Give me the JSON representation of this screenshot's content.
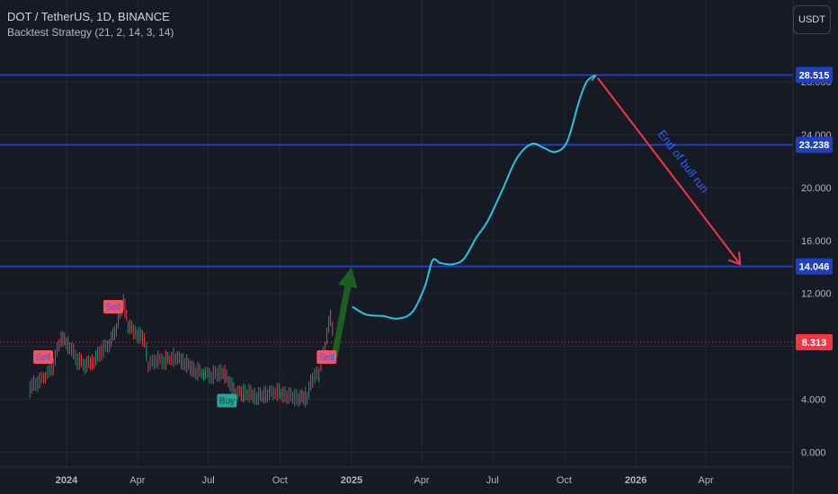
{
  "header": {
    "symbol": "DOT / TetherUS, 1D, BINANCE",
    "strategy": "Backtest Strategy (21, 2, 14, 3, 14)"
  },
  "currency_button": "USDT",
  "chart_data": {
    "type": "line",
    "ylim": [
      -1.0,
      29.5
    ],
    "y_ticks": [
      "0.000",
      "4.000",
      "8.000",
      "12.000",
      "16.000",
      "20.000",
      "24.000",
      "28.000"
    ],
    "y_tick_values": [
      0,
      4,
      8,
      12,
      16,
      20,
      24,
      28
    ],
    "x_ticks": [
      {
        "label": "2024",
        "date": "2024-01-01"
      },
      {
        "label": "Apr",
        "date": "2024-04-01"
      },
      {
        "label": "Jul",
        "date": "2024-07-01"
      },
      {
        "label": "Oct",
        "date": "2024-10-01"
      },
      {
        "label": "2025",
        "date": "2025-01-01"
      },
      {
        "label": "Apr",
        "date": "2025-04-01"
      },
      {
        "label": "Jul",
        "date": "2025-07-01"
      },
      {
        "label": "Oct",
        "date": "2025-10-01"
      },
      {
        "label": "2026",
        "date": "2026-01-01"
      },
      {
        "label": "Apr",
        "date": "2026-04-01"
      }
    ],
    "horizontal_levels": [
      {
        "value": 28.515,
        "label": "28.515",
        "color": "#1e3fbf"
      },
      {
        "value": 23.238,
        "label": "23.238",
        "color": "#1e3fbf"
      },
      {
        "value": 14.046,
        "label": "14.046",
        "color": "#1e3fbf"
      }
    ],
    "last_price": {
      "value": 8.313,
      "label": "8.313",
      "color": "#f23645"
    },
    "price_series": {
      "name": "",
      "color_up": "#089981",
      "color_down": "#f23645",
      "points": [
        [
          "2023-11-15",
          4.9
        ],
        [
          "2023-11-25",
          5.3
        ],
        [
          "2023-12-05",
          5.8
        ],
        [
          "2023-12-15",
          6.6
        ],
        [
          "2023-12-25",
          8.7
        ],
        [
          "2024-01-05",
          8.0
        ],
        [
          "2024-01-15",
          7.0
        ],
        [
          "2024-01-25",
          6.6
        ],
        [
          "2024-02-05",
          6.9
        ],
        [
          "2024-02-15",
          7.7
        ],
        [
          "2024-02-25",
          8.2
        ],
        [
          "2024-03-05",
          9.4
        ],
        [
          "2024-03-14",
          11.5
        ],
        [
          "2024-03-20",
          9.6
        ],
        [
          "2024-04-01",
          8.9
        ],
        [
          "2024-04-10",
          8.6
        ],
        [
          "2024-04-15",
          6.6
        ],
        [
          "2024-04-25",
          7.0
        ],
        [
          "2024-05-05",
          6.9
        ],
        [
          "2024-05-20",
          7.2
        ],
        [
          "2024-06-01",
          6.8
        ],
        [
          "2024-06-15",
          6.1
        ],
        [
          "2024-06-25",
          6.0
        ],
        [
          "2024-07-05",
          5.8
        ],
        [
          "2024-07-20",
          6.1
        ],
        [
          "2024-08-05",
          4.5
        ],
        [
          "2024-08-20",
          4.5
        ],
        [
          "2024-09-01",
          4.2
        ],
        [
          "2024-09-15",
          4.4
        ],
        [
          "2024-09-25",
          4.6
        ],
        [
          "2024-10-10",
          4.3
        ],
        [
          "2024-10-25",
          4.1
        ],
        [
          "2024-11-05",
          4.2
        ],
        [
          "2024-11-12",
          5.6
        ],
        [
          "2024-11-20",
          6.0
        ],
        [
          "2024-11-28",
          8.0
        ],
        [
          "2024-12-05",
          10.3
        ],
        [
          "2024-12-10",
          8.3
        ]
      ]
    },
    "projection_series": {
      "name": "",
      "color": "#26c6da",
      "points": [
        [
          "2025-01-02",
          11.0
        ],
        [
          "2025-01-20",
          10.4
        ],
        [
          "2025-02-10",
          10.3
        ],
        [
          "2025-03-01",
          10.1
        ],
        [
          "2025-03-20",
          10.6
        ],
        [
          "2025-04-05",
          12.5
        ],
        [
          "2025-04-15",
          14.5
        ],
        [
          "2025-04-25",
          14.3
        ],
        [
          "2025-05-10",
          14.2
        ],
        [
          "2025-05-25",
          14.6
        ],
        [
          "2025-06-10",
          16.2
        ],
        [
          "2025-06-25",
          17.5
        ],
        [
          "2025-07-15",
          20.0
        ],
        [
          "2025-08-01",
          22.2
        ],
        [
          "2025-08-20",
          23.3
        ],
        [
          "2025-09-05",
          23.0
        ],
        [
          "2025-09-20",
          22.7
        ],
        [
          "2025-10-05",
          23.5
        ],
        [
          "2025-10-20",
          26.5
        ],
        [
          "2025-10-30",
          28.0
        ],
        [
          "2025-11-10",
          28.5
        ]
      ]
    },
    "green_arrow": {
      "from": [
        "2024-12-10",
        7.2
      ],
      "to": [
        "2025-01-01",
        14.0
      ],
      "color": "#1b5e20"
    },
    "red_arrow": {
      "from": [
        "2025-11-13",
        28.3
      ],
      "to": [
        "2026-05-15",
        14.2
      ],
      "color": "#f23645"
    },
    "annotation": {
      "text": "End of bull run",
      "color": "#2962ff"
    },
    "signals": [
      {
        "label": "Sell",
        "date": "2023-12-02",
        "value": 7.2,
        "kind": "sell"
      },
      {
        "label": "Sell",
        "date": "2024-03-01",
        "value": 11.0,
        "kind": "sell"
      },
      {
        "label": "Buy",
        "date": "2024-07-25",
        "value": 3.9,
        "kind": "buy"
      },
      {
        "label": "Sell",
        "date": "2024-11-30",
        "value": 7.2,
        "kind": "sell"
      }
    ]
  }
}
